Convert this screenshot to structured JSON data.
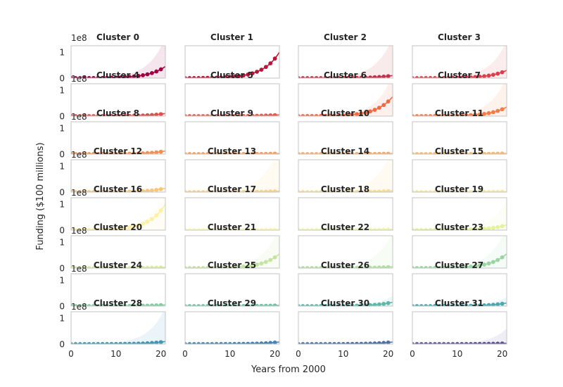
{
  "figure": {
    "xlabel": "Years from 2000",
    "ylabel": "Funding ($100 millions)",
    "offset_text": "1e8"
  },
  "chart_data": {
    "type": "line",
    "layout": "small-multiples 8x4",
    "xlim": [
      0,
      21
    ],
    "ylim": [
      0,
      1.25
    ],
    "xticks": [
      0,
      10,
      20
    ],
    "yticks": [
      0,
      1
    ],
    "xtick_labels": [
      "0",
      "10",
      "20"
    ],
    "ytick_labels": [
      "0",
      "1"
    ],
    "x_years": [
      0,
      1,
      2,
      3,
      4,
      5,
      6,
      7,
      8,
      9,
      10,
      11,
      12,
      13,
      14,
      15,
      16,
      17,
      18,
      19,
      20,
      21
    ],
    "grid": false,
    "legend": "none",
    "panels": [
      {
        "title": "Cluster 0",
        "color": "#9e0142",
        "band_top": 1.6,
        "end_value": 0.45
      },
      {
        "title": "Cluster 1",
        "color": "#b8173d",
        "band_top": 0.0,
        "end_value": 1.0
      },
      {
        "title": "Cluster 2",
        "color": "#c62e48",
        "band_top": 1.6,
        "end_value": 0.1
      },
      {
        "title": "Cluster 3",
        "color": "#d8404d",
        "band_top": 1.45,
        "end_value": 0.3
      },
      {
        "title": "Cluster 4",
        "color": "#e14d4a",
        "band_top": 0.0,
        "end_value": 0.1
      },
      {
        "title": "Cluster 5",
        "color": "#e55a4c",
        "band_top": 0.0,
        "end_value": 0.05
      },
      {
        "title": "Cluster 6",
        "color": "#f26a44",
        "band_top": 1.6,
        "end_value": 0.75
      },
      {
        "title": "Cluster 7",
        "color": "#f47c4a",
        "band_top": 1.55,
        "end_value": 0.35
      },
      {
        "title": "Cluster 8",
        "color": "#f88d52",
        "band_top": 0.0,
        "end_value": 0.12
      },
      {
        "title": "Cluster 9",
        "color": "#f99b58",
        "band_top": 0.0,
        "end_value": 0.02
      },
      {
        "title": "Cluster 10",
        "color": "#fba862",
        "band_top": 0.0,
        "end_value": 0.02
      },
      {
        "title": "Cluster 11",
        "color": "#fdb768",
        "band_top": 0.0,
        "end_value": 0.03
      },
      {
        "title": "Cluster 12",
        "color": "#fdc574",
        "band_top": 0.0,
        "end_value": 0.15
      },
      {
        "title": "Cluster 13",
        "color": "#fdd180",
        "band_top": 1.8,
        "end_value": 0.04
      },
      {
        "title": "Cluster 14",
        "color": "#fedc8c",
        "band_top": 1.7,
        "end_value": 0.05
      },
      {
        "title": "Cluster 15",
        "color": "#fee797",
        "band_top": 0.0,
        "end_value": 0.02
      },
      {
        "title": "Cluster 16",
        "color": "#feefa4",
        "band_top": 1.5,
        "end_value": 1.0
      },
      {
        "title": "Cluster 17",
        "color": "#fbf8b0",
        "band_top": 0.0,
        "end_value": 0.02
      },
      {
        "title": "Cluster 18",
        "color": "#f1f8a9",
        "band_top": 0.0,
        "end_value": 0.03
      },
      {
        "title": "Cluster 19",
        "color": "#e4f29a",
        "band_top": 1.15,
        "end_value": 0.2
      },
      {
        "title": "Cluster 20",
        "color": "#d6ec9d",
        "band_top": 0.0,
        "end_value": 0.03
      },
      {
        "title": "Cluster 21",
        "color": "#c4e59f",
        "band_top": 1.6,
        "end_value": 0.55
      },
      {
        "title": "Cluster 22",
        "color": "#b0dda1",
        "band_top": 1.4,
        "end_value": 0.05
      },
      {
        "title": "Cluster 23",
        "color": "#9ad5a3",
        "band_top": 1.6,
        "end_value": 0.55
      },
      {
        "title": "Cluster 24",
        "color": "#84cca4",
        "band_top": 0.0,
        "end_value": 0.05
      },
      {
        "title": "Cluster 25",
        "color": "#70c3a5",
        "band_top": 0.0,
        "end_value": 0.03
      },
      {
        "title": "Cluster 26",
        "color": "#5cb8a7",
        "band_top": 0.4,
        "end_value": 0.15
      },
      {
        "title": "Cluster 27",
        "color": "#4aa9ae",
        "band_top": 0.35,
        "end_value": 0.12
      },
      {
        "title": "Cluster 28",
        "color": "#3e97b7",
        "band_top": 1.45,
        "end_value": 0.1
      },
      {
        "title": "Cluster 29",
        "color": "#3f85bb",
        "band_top": 0.0,
        "end_value": 0.08
      },
      {
        "title": "Cluster 30",
        "color": "#4a70b0",
        "band_top": 0.0,
        "end_value": 0.08
      },
      {
        "title": "Cluster 31",
        "color": "#5e4fa2",
        "band_top": 0.6,
        "end_value": 0.03
      }
    ]
  }
}
